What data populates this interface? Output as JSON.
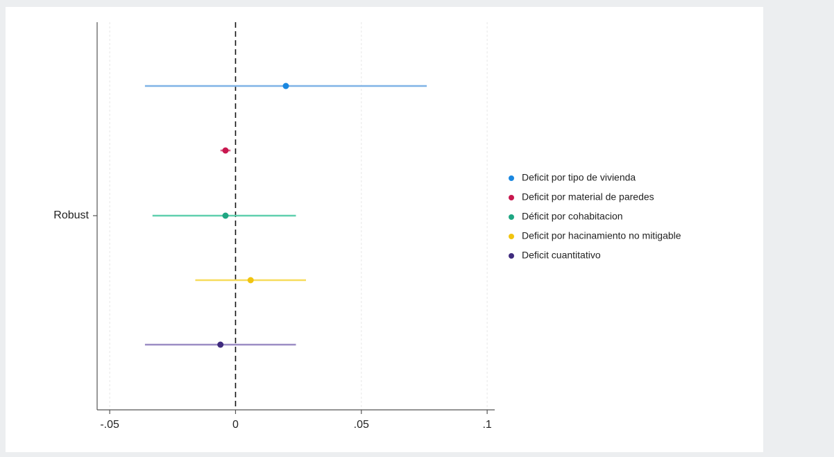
{
  "chart_data": {
    "type": "scatter",
    "title": "",
    "xlabel": "",
    "ylabel": "",
    "category": "Robust",
    "xlim": [
      -0.055,
      0.103
    ],
    "x_ticks": [
      {
        "value": -0.05,
        "label": "-.05"
      },
      {
        "value": 0,
        "label": "0"
      },
      {
        "value": 0.05,
        "label": ".05"
      },
      {
        "value": 0.1,
        "label": ".1"
      }
    ],
    "reference_line": {
      "value": 0,
      "style": "dashed"
    },
    "grid": "vertical",
    "legend_position": "right",
    "series": [
      {
        "name": "Deficit por tipo de vivienda",
        "estimate": 0.02,
        "ci_low": -0.036,
        "ci_high": 0.076,
        "color": "#1a87e0",
        "ci_color": "#7fb2e6"
      },
      {
        "name": "Deficit por material de paredes",
        "estimate": -0.004,
        "ci_low": -0.006,
        "ci_high": -0.002,
        "color": "#c8174e",
        "ci_color": "#d9628a"
      },
      {
        "name": "Déficit por cohabitacion",
        "estimate": -0.004,
        "ci_low": -0.033,
        "ci_high": 0.024,
        "color": "#1ea682",
        "ci_color": "#5fcfae"
      },
      {
        "name": "Deficit por hacinamiento no mitigable",
        "estimate": 0.006,
        "ci_low": -0.016,
        "ci_high": 0.028,
        "color": "#f1c40f",
        "ci_color": "#f7dc5b"
      },
      {
        "name": "Deficit cuantitativo",
        "estimate": -0.006,
        "ci_low": -0.036,
        "ci_high": 0.024,
        "color": "#3f2b7e",
        "ci_color": "#9b8cc4"
      }
    ]
  }
}
